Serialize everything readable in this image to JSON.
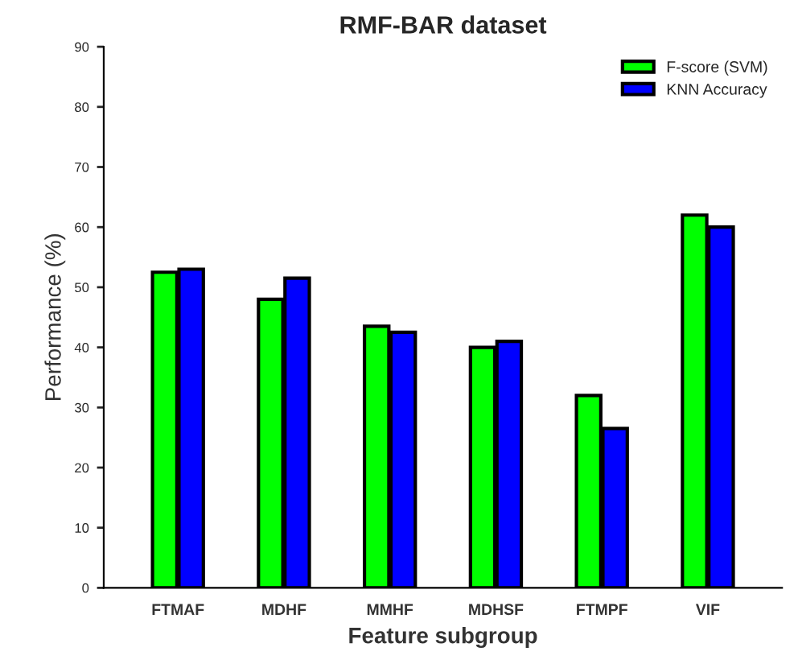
{
  "chart_data": {
    "type": "bar",
    "title": "RMF-BAR dataset",
    "xlabel": "Feature subgroup",
    "ylabel": "Performance (%)",
    "categories": [
      "FTMAF",
      "MDHF",
      "MMHF",
      "MDHSF",
      "FTMPF",
      "VIF"
    ],
    "series": [
      {
        "name": "F-score (SVM)",
        "color": "#00ff00",
        "values": [
          52.5,
          48,
          43.5,
          40,
          32,
          62
        ]
      },
      {
        "name": "KNN Accuracy",
        "color": "#0000ff",
        "values": [
          53,
          51.5,
          42.5,
          41,
          26.5,
          60
        ]
      }
    ],
    "ylim": [
      0,
      90
    ],
    "yticks": [
      0,
      10,
      20,
      30,
      40,
      50,
      60,
      70,
      80,
      90
    ],
    "legend": "top right",
    "grid": false
  }
}
